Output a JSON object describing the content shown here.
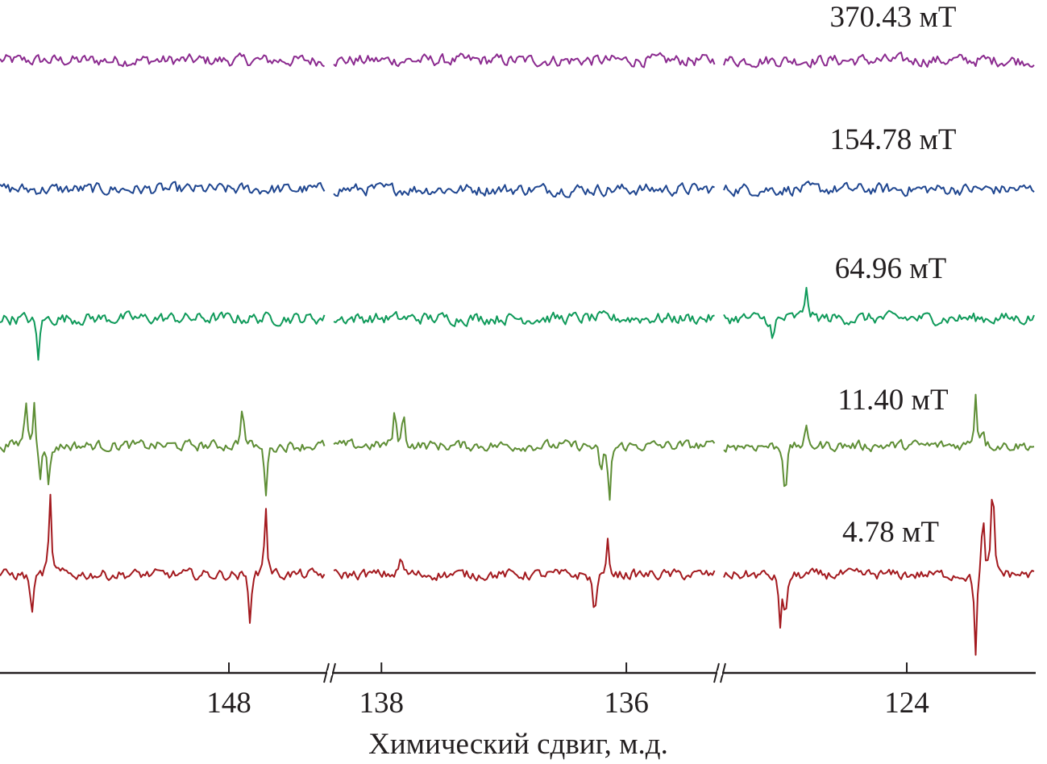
{
  "chart_data": {
    "type": "line",
    "xlabel": "Химический сдвиг, м.д.",
    "axis_breaks": true,
    "segments": [
      {
        "range": [
          149.87,
          147.21
        ],
        "ticks": [
          148
        ],
        "tick_labels": [
          "148"
        ]
      },
      {
        "range": [
          138.39,
          135.27
        ],
        "ticks": [
          138,
          136
        ],
        "tick_labels": [
          "138",
          "136"
        ]
      },
      {
        "range": [
          125.49,
          122.95
        ],
        "ticks": [
          124
        ],
        "tick_labels": [
          "124"
        ]
      }
    ],
    "grid": false,
    "series": [
      {
        "name": "370.43 мТ",
        "color": "#8b2a8f",
        "noise": 8,
        "peaks": []
      },
      {
        "name": "154.78 мТ",
        "color": "#1f4690",
        "noise": 8,
        "peaks": []
      },
      {
        "name": "64.96 мТ",
        "color": "#0f9a5a",
        "noise": 8,
        "peaks": [
          [
            149.56,
            -55
          ],
          [
            125.09,
            -35
          ],
          [
            124.82,
            45
          ]
        ]
      },
      {
        "name": "11.40 мТ",
        "color": "#5e8e35",
        "noise": 7,
        "peaks": [
          [
            149.66,
            60
          ],
          [
            149.59,
            60
          ],
          [
            149.54,
            -45
          ],
          [
            149.47,
            -50
          ],
          [
            147.89,
            55
          ],
          [
            147.7,
            -60
          ],
          [
            137.89,
            45
          ],
          [
            137.82,
            40
          ],
          [
            136.21,
            -40
          ],
          [
            136.14,
            -75
          ],
          [
            124.99,
            -65
          ],
          [
            124.82,
            20
          ],
          [
            123.44,
            65
          ],
          [
            123.38,
            25
          ]
        ]
      },
      {
        "name": "4.78 мТ",
        "color": "#a3191e",
        "noise": 7,
        "peaks": [
          [
            149.61,
            -55
          ],
          [
            149.46,
            95
          ],
          [
            147.83,
            -55
          ],
          [
            147.7,
            90
          ],
          [
            137.84,
            25
          ],
          [
            136.26,
            -60
          ],
          [
            136.15,
            40
          ],
          [
            125.03,
            -60
          ],
          [
            124.99,
            -60
          ],
          [
            123.44,
            -100
          ],
          [
            123.38,
            75
          ],
          [
            123.3,
            120
          ]
        ]
      }
    ]
  }
}
